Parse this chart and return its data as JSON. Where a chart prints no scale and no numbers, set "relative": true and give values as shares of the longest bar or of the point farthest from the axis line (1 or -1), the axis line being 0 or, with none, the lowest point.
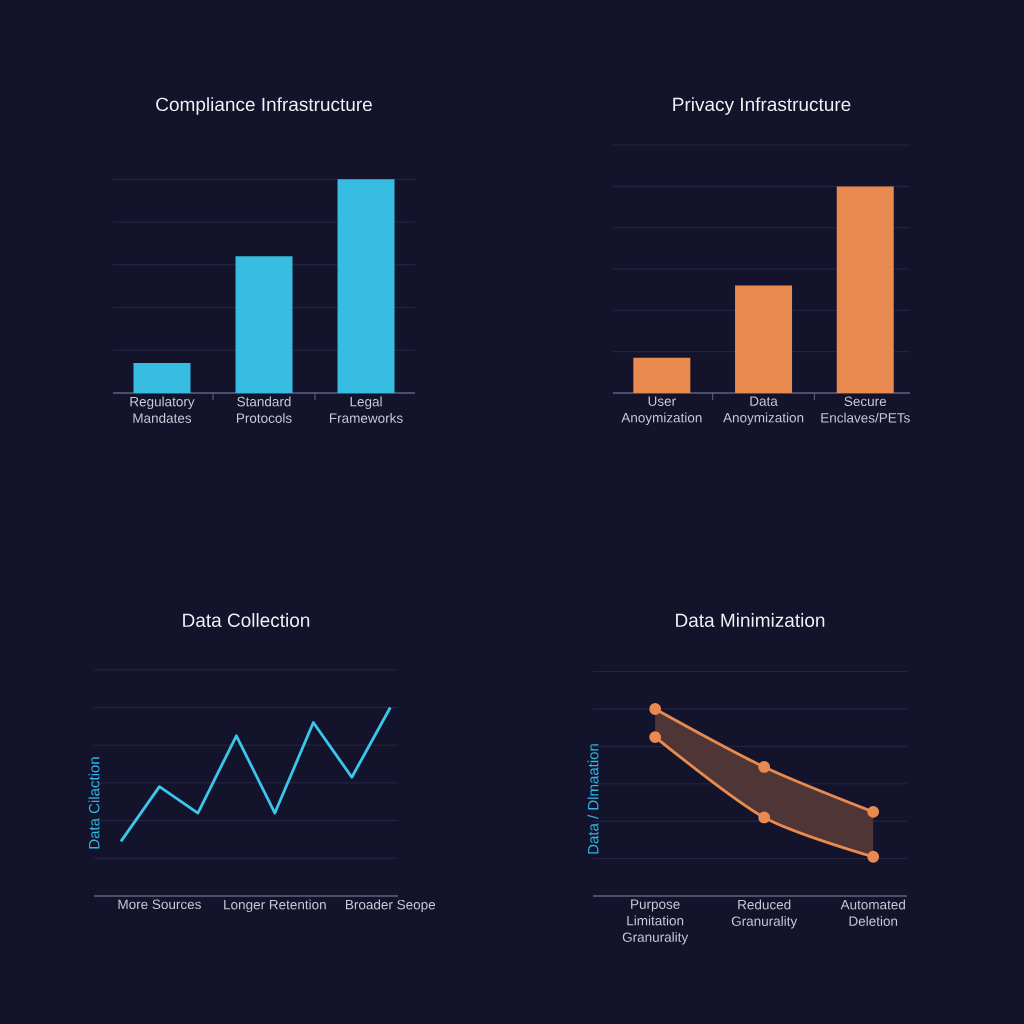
{
  "chart_data": [
    {
      "type": "bar",
      "title": "Compliance Infrastructure",
      "categories": [
        "Regulatory Mandates",
        "Standard Protocols",
        "Legal Frameworks"
      ],
      "values": [
        0.14,
        0.64,
        1
      ],
      "color": "#38bde2",
      "relative": true,
      "grid": "y"
    },
    {
      "type": "bar",
      "title": "Privacy Infrastructure",
      "categories": [
        "User Anoymization",
        "Data Anoymization",
        "Secure Enclaves/PETs"
      ],
      "values": [
        0.17,
        0.52,
        1
      ],
      "color": "#e98a50",
      "relative": true,
      "grid": "y"
    },
    {
      "type": "line",
      "title": "Data Collection",
      "ylabel": "Data Cilaction",
      "categories": [
        null,
        "More Sources",
        null,
        null,
        "Longer Retention",
        null,
        null,
        "Broader Seope"
      ],
      "values": [
        0.29,
        0.58,
        0.44,
        0.85,
        0.44,
        0.92,
        0.63,
        1
      ],
      "color": "#3cc6ec",
      "relative": true,
      "grid": "y"
    },
    {
      "type": "line",
      "title": "Data Minimization",
      "ylabel": "Data / Dlmaation",
      "categories": [
        "Purpose Limitation Granurality",
        "Reduced Granurality",
        "Automated Deletion"
      ],
      "series": [
        {
          "color": "#e98a50",
          "values": [
            1,
            0.69,
            0.45
          ],
          "lower": [
            0.85,
            0.42,
            0.21
          ],
          "upper": [
            1,
            0.69,
            0.45
          ]
        },
        {
          "color": "#e98a50",
          "values": [
            0.85,
            0.42,
            0.21
          ]
        }
      ],
      "relative": true,
      "grid": "y",
      "marker": "circle"
    }
  ]
}
